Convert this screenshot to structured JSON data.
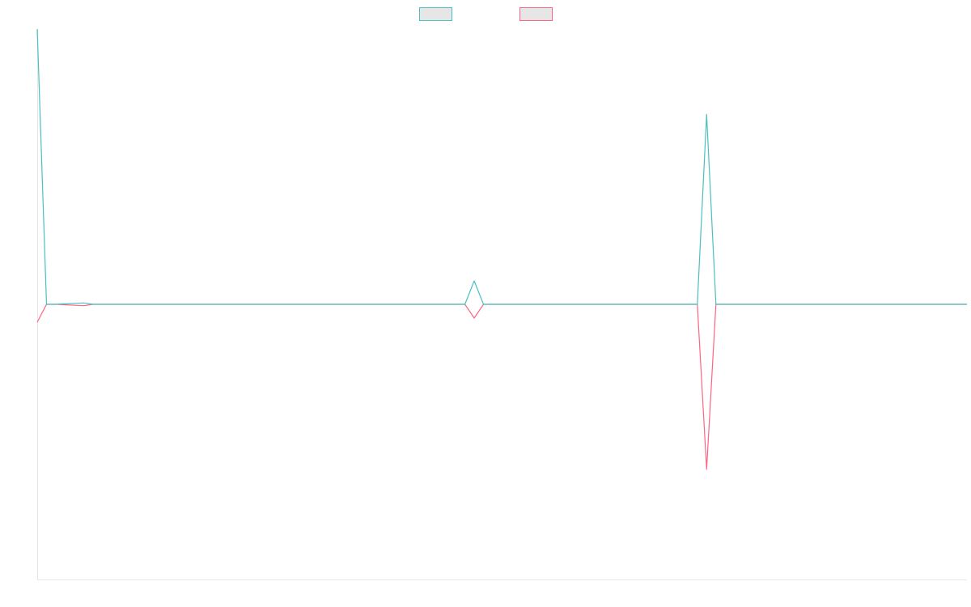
{
  "chart_data": {
    "type": "line",
    "title": "",
    "xlabel": "",
    "ylabel": "",
    "legend": {
      "placement": "top-center",
      "labels": [
        "",
        ""
      ]
    },
    "grid": false,
    "x": [
      0,
      1,
      2,
      5,
      6,
      7,
      45,
      46,
      47,
      48,
      49,
      50,
      70,
      71,
      72,
      73,
      74,
      75,
      100
    ],
    "ylim": [
      -100,
      100
    ],
    "series": [
      {
        "name": "",
        "color": "#4bc0c0",
        "values": [
          100,
          0,
          0,
          0.5,
          0,
          0,
          0,
          0,
          8.5,
          0,
          0,
          0,
          0,
          0,
          69,
          0,
          0,
          0,
          0
        ]
      },
      {
        "name": "",
        "color": "#ff6384",
        "values": [
          -6.5,
          0,
          0,
          -0.5,
          0,
          0,
          0,
          0,
          -5,
          0,
          0,
          0,
          0,
          0,
          -60,
          0,
          0,
          0,
          0
        ]
      }
    ]
  }
}
